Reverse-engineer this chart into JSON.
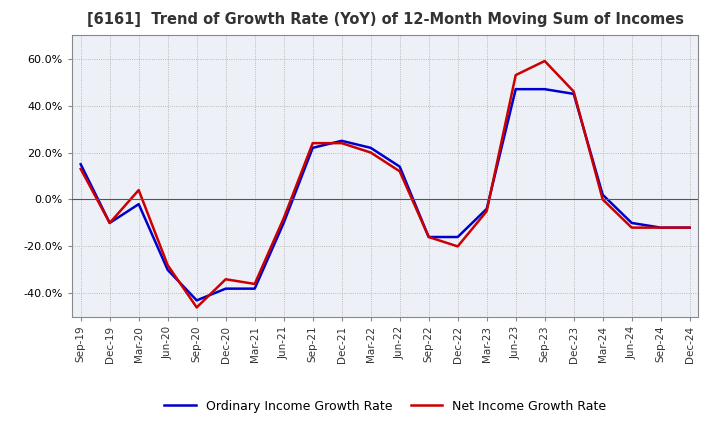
{
  "title": "[6161]  Trend of Growth Rate (YoY) of 12-Month Moving Sum of Incomes",
  "x_labels": [
    "Sep-19",
    "Dec-19",
    "Mar-20",
    "Jun-20",
    "Sep-20",
    "Dec-20",
    "Mar-21",
    "Jun-21",
    "Sep-21",
    "Dec-21",
    "Mar-22",
    "Jun-22",
    "Sep-22",
    "Dec-22",
    "Mar-23",
    "Jun-23",
    "Sep-23",
    "Dec-23",
    "Mar-24",
    "Jun-24",
    "Sep-24",
    "Dec-24"
  ],
  "ordinary_income": [
    15.0,
    -10.0,
    -2.0,
    -30.0,
    -43.0,
    -38.0,
    -38.0,
    -10.0,
    22.0,
    25.0,
    22.0,
    14.0,
    -16.0,
    -16.0,
    -4.0,
    47.0,
    47.0,
    45.0,
    2.0,
    -10.0,
    -12.0,
    -12.0
  ],
  "net_income": [
    13.0,
    -10.0,
    4.0,
    -28.0,
    -46.0,
    -34.0,
    -36.0,
    -8.0,
    24.0,
    24.0,
    20.0,
    12.0,
    -16.0,
    -20.0,
    -5.0,
    53.0,
    59.0,
    46.0,
    0.0,
    -12.0,
    -12.0,
    -12.0
  ],
  "ordinary_color": "#0000cc",
  "net_color": "#cc0000",
  "ylim": [
    -50,
    70
  ],
  "yticks": [
    -40.0,
    -20.0,
    0.0,
    20.0,
    40.0,
    60.0
  ],
  "plot_bg_color": "#eef0f8",
  "background_color": "#ffffff",
  "legend_ordinary": "Ordinary Income Growth Rate",
  "legend_net": "Net Income Growth Rate",
  "grid_color": "#aaaaaa",
  "zero_line_color": "#555555"
}
